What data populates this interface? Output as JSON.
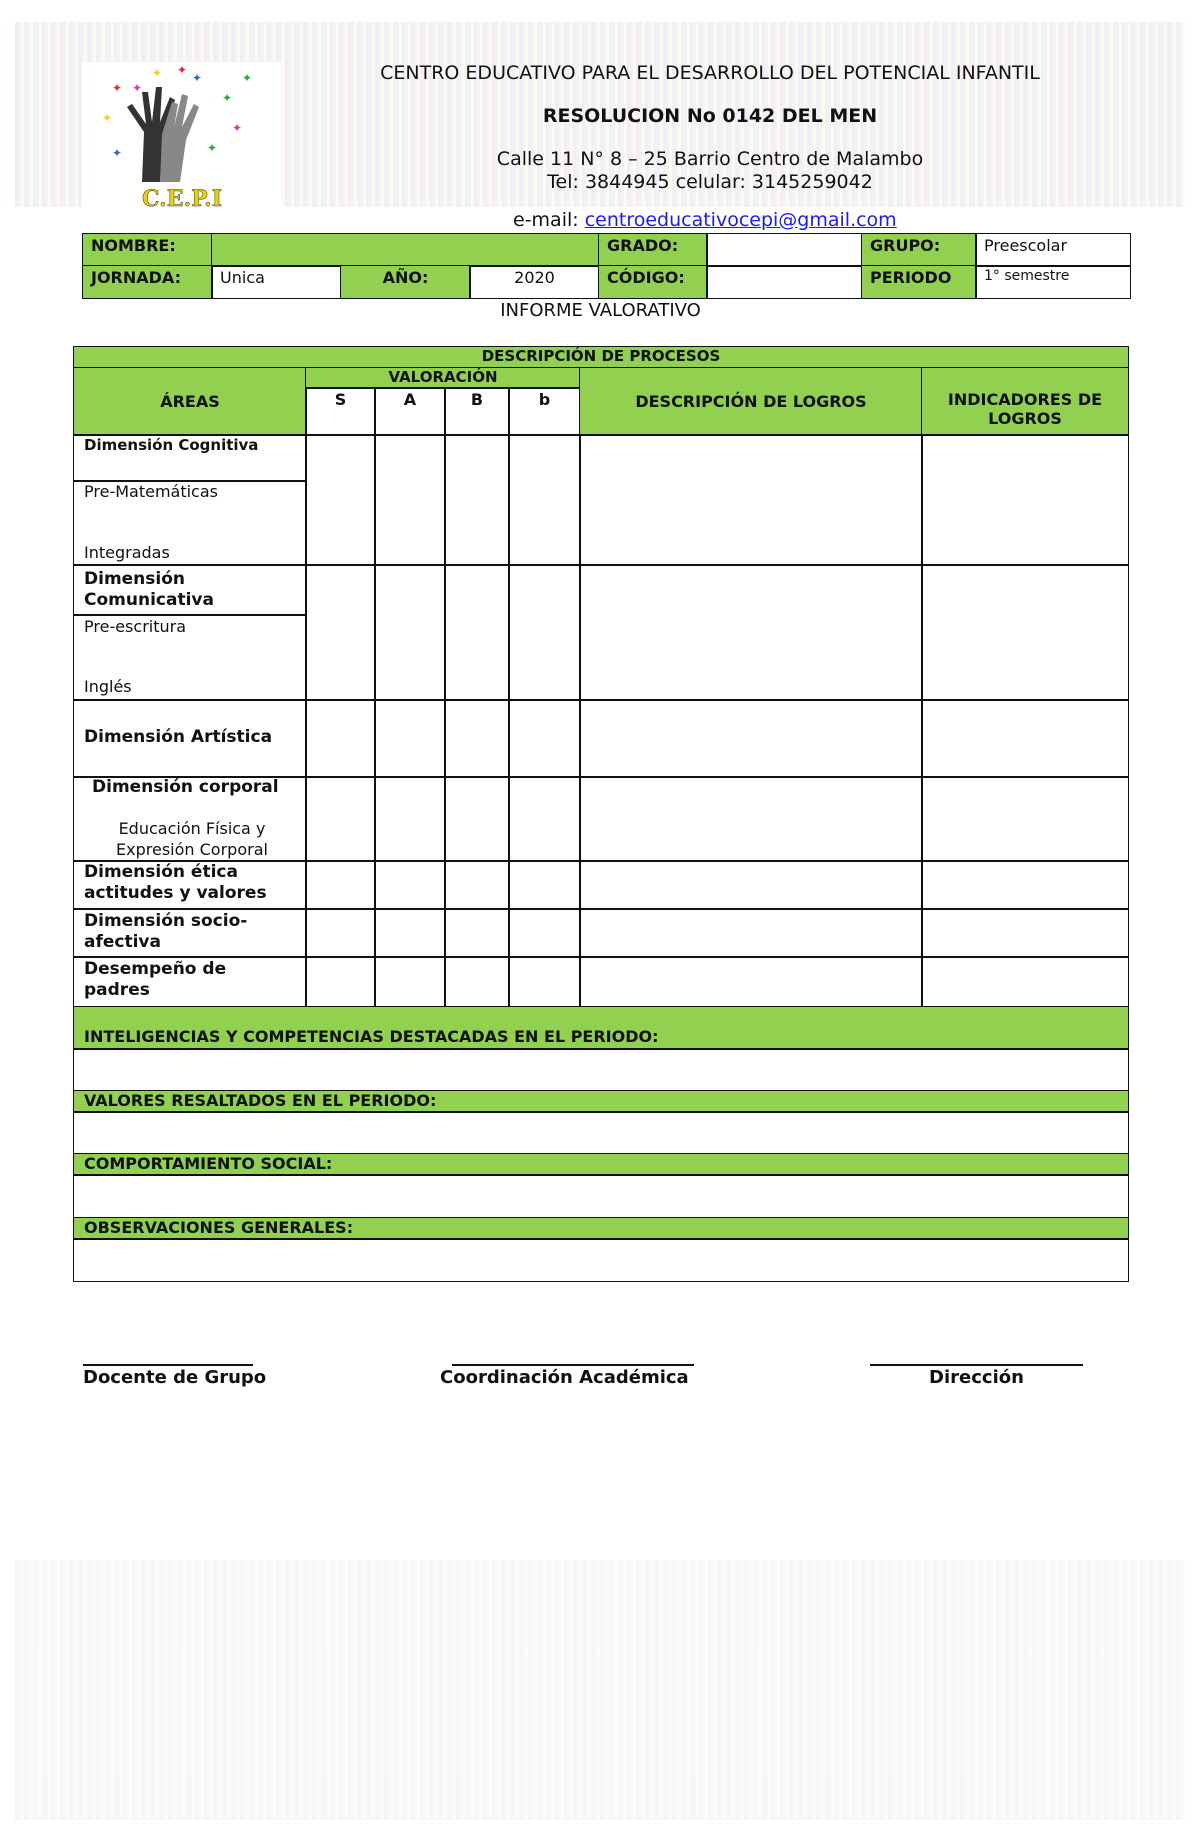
{
  "header": {
    "institution": "CENTRO EDUCATIVO PARA EL DESARROLLO DEL POTENCIAL INFANTIL",
    "resolution": "RESOLUCION No 0142 DEL MEN",
    "address": "Calle 11 N° 8 – 25 Barrio Centro de Malambo",
    "phone": "Tel: 3844945 celular: 3145259042",
    "email_label": "e-mail: ",
    "email": "centroeducativocepi@gmail.com",
    "logo_text": "C.E.P.I"
  },
  "info": {
    "nombre_label": "NOMBRE:",
    "nombre": "",
    "grado_label": "GRADO:",
    "grado": "",
    "grupo_label": "GRUPO:",
    "grupo": "Preescolar",
    "jornada_label": "JORNADA:",
    "jornada": "Unica",
    "anio_label": "AÑO:",
    "anio": "2020",
    "codigo_label": "CÓDIGO:",
    "codigo": "",
    "periodo_label": "PERIODO",
    "periodo": "1° semestre"
  },
  "report_title": "INFORME VALORATIVO",
  "table": {
    "title": "DESCRIPCIÓN DE PROCESOS",
    "areas_header": "ÁREAS",
    "valoracion_header": "VALORACIÓN",
    "grades": [
      "S",
      "A",
      "B",
      "b"
    ],
    "desc_header": "DESCRIPCIÓN DE LOGROS",
    "ind_header": "INDICADORES DE LOGROS",
    "rows": {
      "cognitiva": "Dimensión  Cognitiva",
      "prematematicas": "Pre-Matemáticas",
      "integradas": "Integradas",
      "comunicativa": "Dimensión Comunicativa",
      "preescritura": "Pre-escritura",
      "ingles": "Inglés",
      "artistica": "Dimensión  Artística",
      "corporal": "Dimensión corporal",
      "edfisica": "Educación Física y Expresión Corporal",
      "etica": "Dimensión ética actitudes y valores",
      "socio": "Dimensión socio-afectiva",
      "padres": "Desempeño de padres"
    },
    "sections": [
      "INTELIGENCIAS Y COMPETENCIAS DESTACADAS EN EL PERIODO:",
      "VALORES RESALTADOS EN EL PERIODO:",
      "COMPORTAMIENTO SOCIAL:",
      "OBSERVACIONES GENERALES:"
    ]
  },
  "signatures": [
    "Docente de Grupo",
    "Coordinación  Académica",
    "Dirección"
  ],
  "colors": {
    "accent_green": "#92d050",
    "link": "#1a1aff"
  }
}
